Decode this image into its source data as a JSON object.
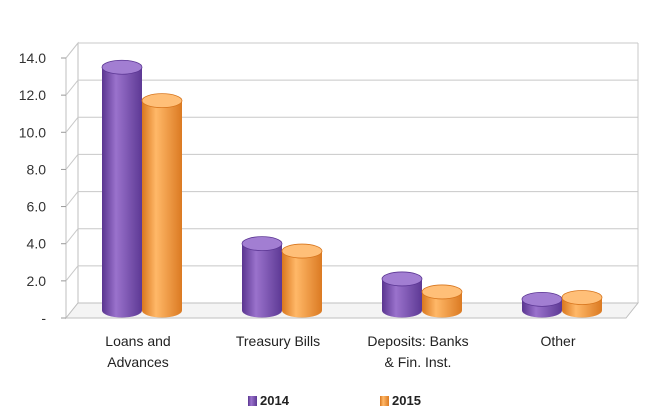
{
  "chart_data": {
    "type": "bar",
    "categories": [
      [
        "Loans and",
        "Advances"
      ],
      [
        "Treasury Bills"
      ],
      [
        "Deposits: Banks",
        "& Fin. Inst."
      ],
      [
        "Other"
      ]
    ],
    "series": [
      {
        "name": "2014",
        "values": [
          13.1,
          3.6,
          1.7,
          0.6
        ],
        "color": "#7e4fb0"
      },
      {
        "name": "2015",
        "values": [
          11.3,
          3.2,
          1.0,
          0.7
        ],
        "color": "#f39a3a"
      }
    ],
    "y_ticks": [
      "-",
      "2.0",
      "4.0",
      "6.0",
      "8.0",
      "10.0",
      "12.0",
      "14.0"
    ],
    "ylim": [
      0,
      14
    ],
    "title": "",
    "xlabel": "",
    "ylabel": "",
    "grid": true,
    "legend_position": "bottom",
    "style": "3d-cylinder"
  }
}
